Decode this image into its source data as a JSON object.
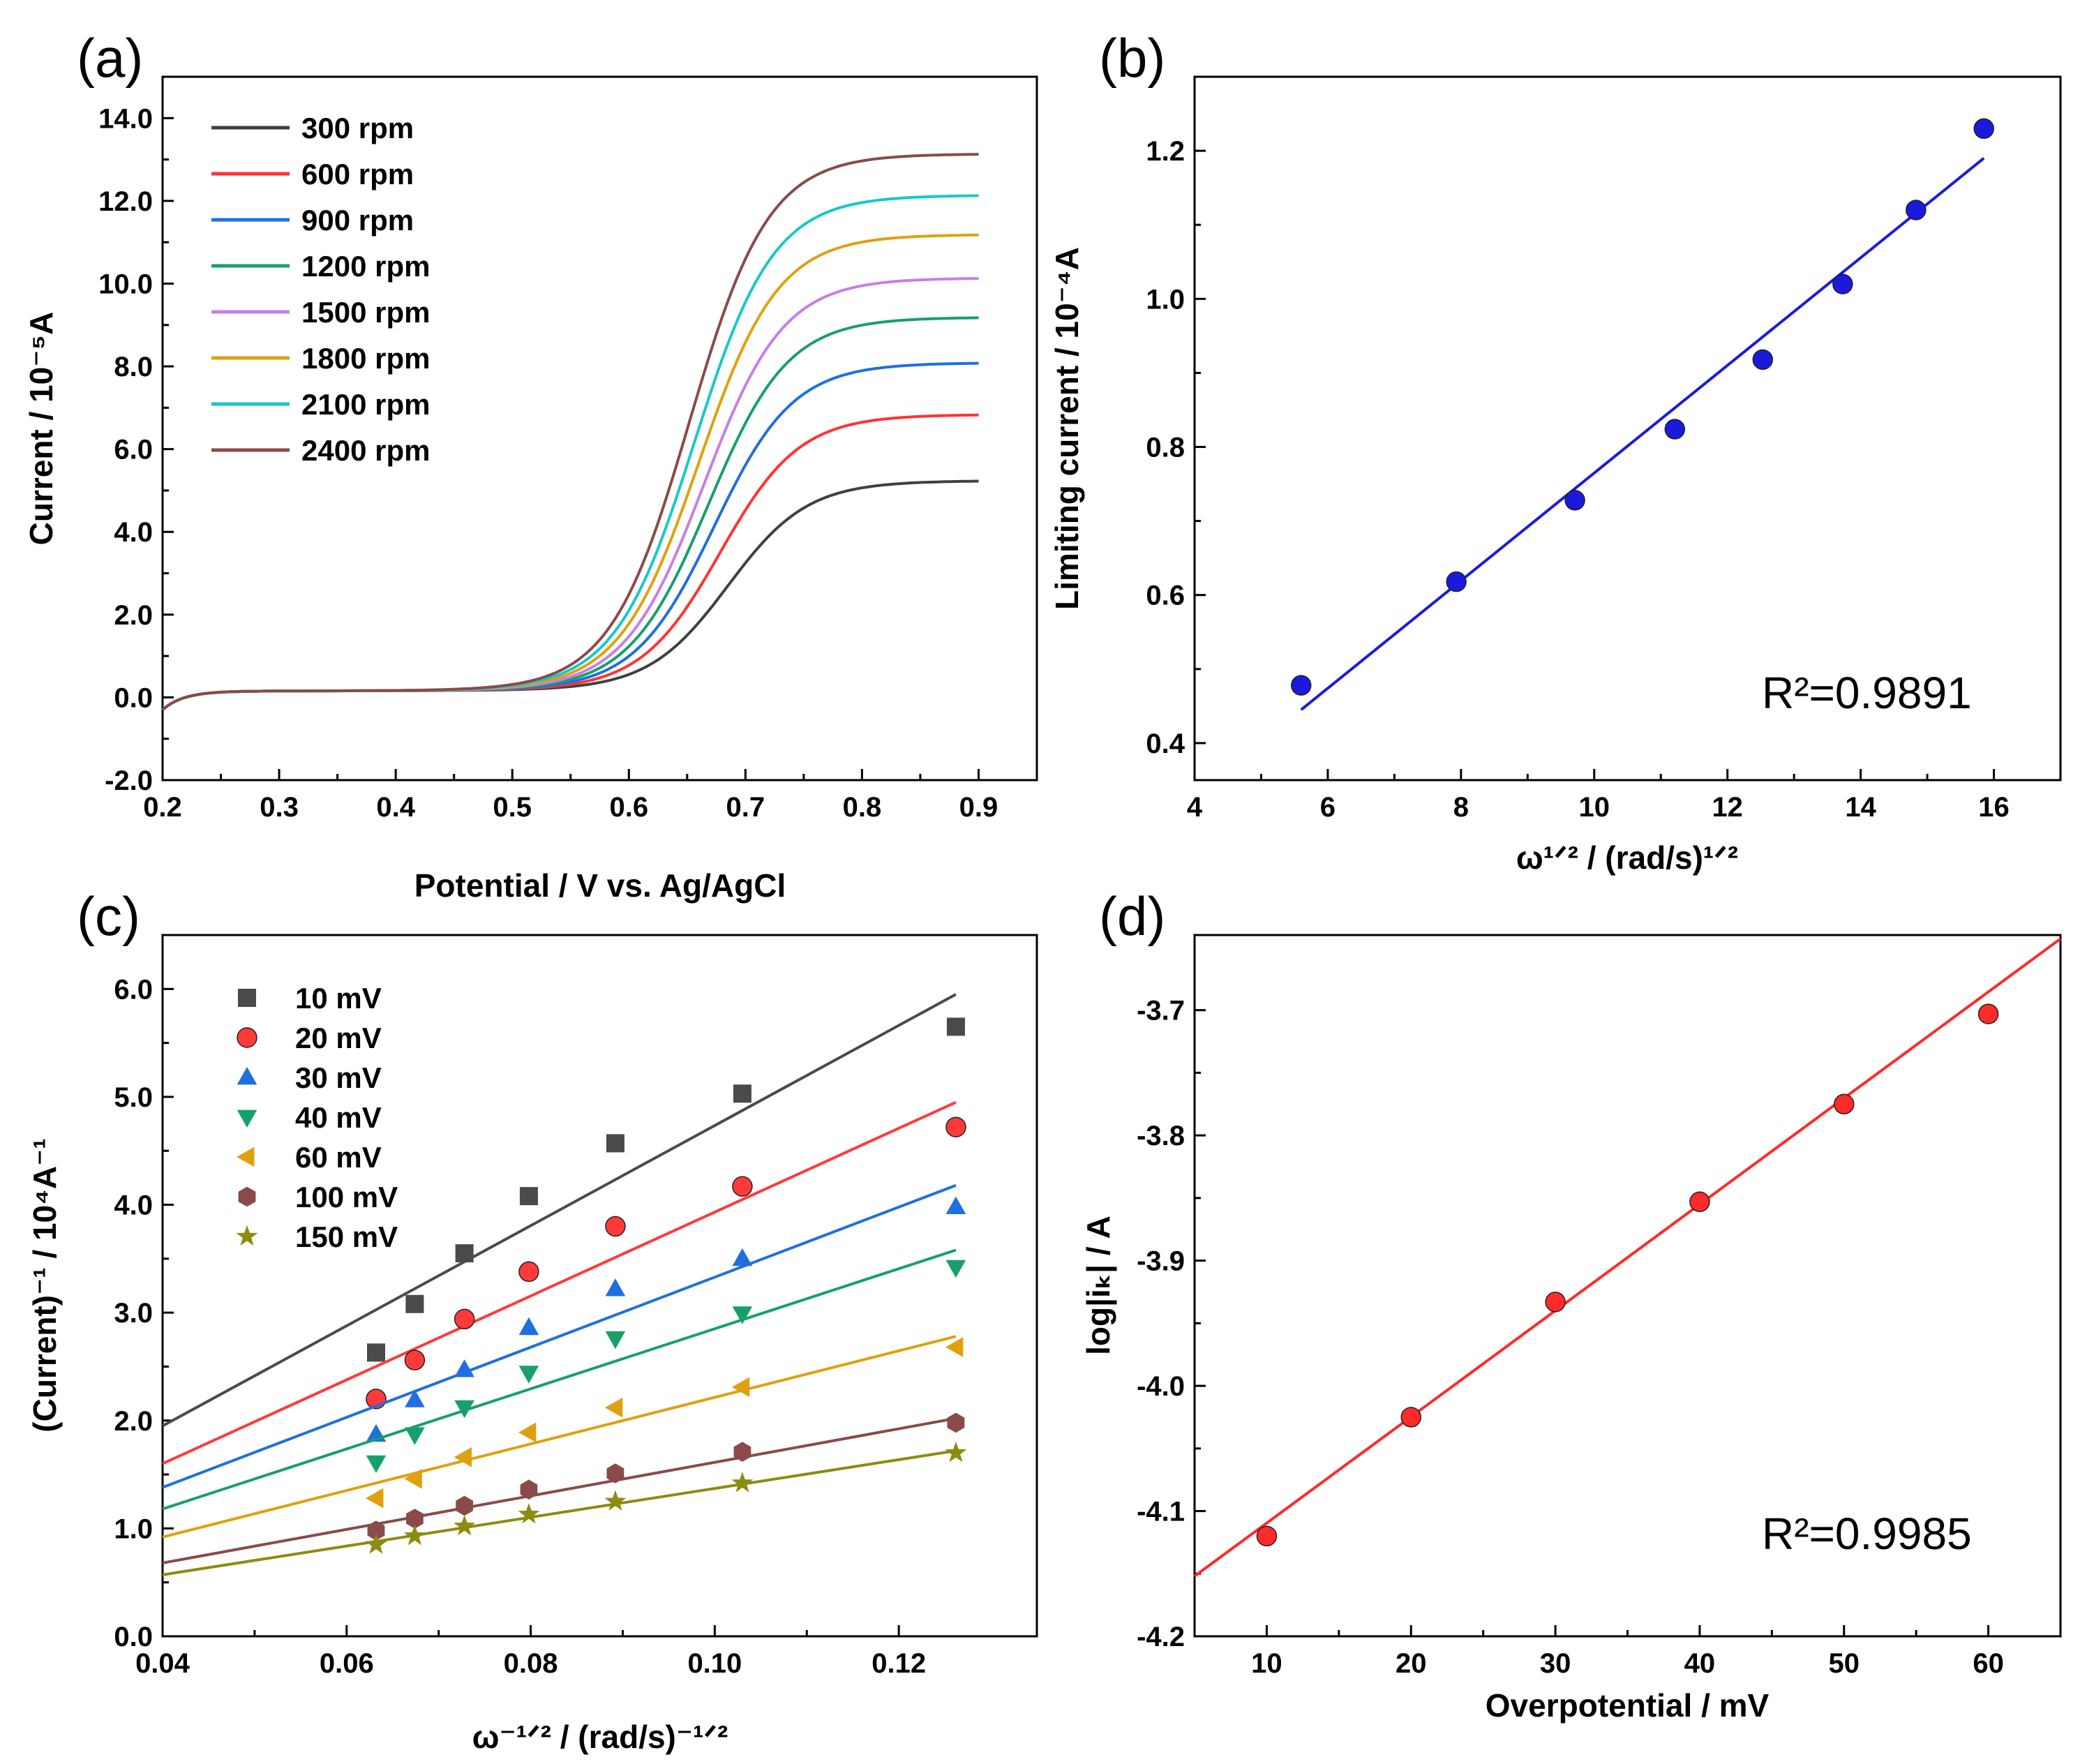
{
  "chart_data": [
    {
      "id": "a",
      "type": "line",
      "panel_label": "(a)",
      "title": "",
      "xlabel": "Potential / V vs. Ag/AgCl",
      "ylabel": "Current / 10⁻⁵A",
      "xlim": [
        0.2,
        0.95
      ],
      "ylim": [
        -2.0,
        15.0
      ],
      "xticks": [
        "0.2",
        "0.3",
        "0.4",
        "0.5",
        "0.6",
        "0.7",
        "0.8",
        "0.9"
      ],
      "yticks": [
        "-2.0",
        "0.0",
        "2.0",
        "4.0",
        "6.0",
        "8.0",
        "10.0",
        "12.0",
        "14.0"
      ],
      "legend_position": "top-left",
      "series": [
        {
          "name": "300 rpm",
          "color": "#404040",
          "limit": 5.2
        },
        {
          "name": "600 rpm",
          "color": "#ff3333",
          "limit": 6.8
        },
        {
          "name": "900 rpm",
          "color": "#1f6fe0",
          "limit": 8.05
        },
        {
          "name": "1200 rpm",
          "color": "#17a06a",
          "limit": 9.15
        },
        {
          "name": "1500 rpm",
          "color": "#c77ee8",
          "limit": 10.1
        },
        {
          "name": "1800 rpm",
          "color": "#e0a010",
          "limit": 11.15
        },
        {
          "name": "2100 rpm",
          "color": "#19c8c8",
          "limit": 12.1
        },
        {
          "name": "2400 rpm",
          "color": "#8a4a4a",
          "limit": 13.1
        }
      ]
    },
    {
      "id": "b",
      "type": "scatter",
      "panel_label": "(b)",
      "xlabel": "ω¹ᐟ² / (rad/s)¹ᐟ²",
      "ylabel": "Limiting current / 10⁻⁴A",
      "xlim": [
        4,
        17
      ],
      "ylim": [
        0.35,
        1.3
      ],
      "xticks": [
        "4",
        "6",
        "8",
        "10",
        "12",
        "14",
        "16"
      ],
      "yticks": [
        "0.4",
        "0.6",
        "0.8",
        "1.0",
        "1.2"
      ],
      "color": "#1a1adc",
      "x": [
        5.6,
        7.93,
        9.71,
        11.21,
        12.53,
        13.73,
        14.83,
        15.85
      ],
      "y": [
        0.478,
        0.618,
        0.728,
        0.824,
        0.918,
        1.02,
        1.12,
        1.23
      ],
      "fit": {
        "x": [
          5.6,
          15.85
        ],
        "y": [
          0.445,
          1.19
        ]
      },
      "annotation": "R²=0.9891"
    },
    {
      "id": "c",
      "type": "scatter",
      "panel_label": "(c)",
      "xlabel": "ω⁻¹ᐟ² / (rad/s)⁻¹ᐟ²",
      "ylabel": "(Current)⁻¹ / 10⁴A⁻¹",
      "xlim": [
        0.04,
        0.135
      ],
      "ylim": [
        0.0,
        6.5
      ],
      "xticks": [
        "0.04",
        "0.06",
        "0.08",
        "0.10",
        "0.12"
      ],
      "yticks": [
        "0.0",
        "1.0",
        "2.0",
        "3.0",
        "4.0",
        "5.0",
        "6.0"
      ],
      "legend_position": "top-left",
      "x": [
        0.0632,
        0.0674,
        0.0728,
        0.0798,
        0.0892,
        0.103,
        0.1262
      ],
      "series": [
        {
          "name": "10 mV",
          "marker": "square",
          "color": "#4a4a4a",
          "values": [
            2.63,
            3.08,
            3.55,
            4.08,
            4.57,
            5.03,
            5.65
          ],
          "fit": [
            1.95,
            5.95
          ]
        },
        {
          "name": "20 mV",
          "marker": "circle",
          "color": "#ff3a3a",
          "values": [
            2.2,
            2.56,
            2.94,
            3.38,
            3.8,
            4.17,
            4.72
          ],
          "fit": [
            1.6,
            4.95
          ]
        },
        {
          "name": "30 mV",
          "marker": "triangle-up",
          "color": "#1f6fe0",
          "values": [
            1.87,
            2.19,
            2.47,
            2.86,
            3.22,
            3.5,
            3.98
          ],
          "fit": [
            1.38,
            4.18
          ]
        },
        {
          "name": "40 mV",
          "marker": "triangle-down",
          "color": "#17a06a",
          "values": [
            1.61,
            1.87,
            2.12,
            2.44,
            2.76,
            2.99,
            3.42
          ],
          "fit": [
            1.18,
            3.58
          ]
        },
        {
          "name": "60 mV",
          "marker": "triangle-left",
          "color": "#e0a010",
          "values": [
            1.28,
            1.46,
            1.66,
            1.89,
            2.12,
            2.31,
            2.68
          ],
          "fit": [
            0.92,
            2.78
          ]
        },
        {
          "name": "100 mV",
          "marker": "hexagon",
          "color": "#8a4a4a",
          "values": [
            0.98,
            1.09,
            1.21,
            1.36,
            1.51,
            1.71,
            1.98
          ],
          "fit": [
            0.68,
            2.02
          ]
        },
        {
          "name": "150 mV",
          "marker": "star",
          "color": "#8c8c10",
          "values": [
            0.85,
            0.93,
            1.02,
            1.13,
            1.25,
            1.42,
            1.7
          ],
          "fit": [
            0.57,
            1.72
          ]
        }
      ]
    },
    {
      "id": "d",
      "type": "scatter",
      "panel_label": "(d)",
      "xlabel": "Overpotential / mV",
      "ylabel": "log|iₖ| / A",
      "xlim": [
        5,
        65
      ],
      "ylim": [
        -4.2,
        -3.64
      ],
      "xticks": [
        "10",
        "20",
        "30",
        "40",
        "50",
        "60"
      ],
      "yticks": [
        "-4.2",
        "-4.1",
        "-4.0",
        "-3.9",
        "-3.8",
        "-3.7"
      ],
      "color": "#ff2a2a",
      "x": [
        10,
        20,
        30,
        40,
        50,
        60
      ],
      "y": [
        -4.12,
        -4.025,
        -3.933,
        -3.853,
        -3.775,
        -3.703
      ],
      "fit": {
        "x": [
          5,
          65
        ],
        "y": [
          -4.152,
          -3.643
        ]
      },
      "annotation": "R²=0.9985"
    }
  ]
}
